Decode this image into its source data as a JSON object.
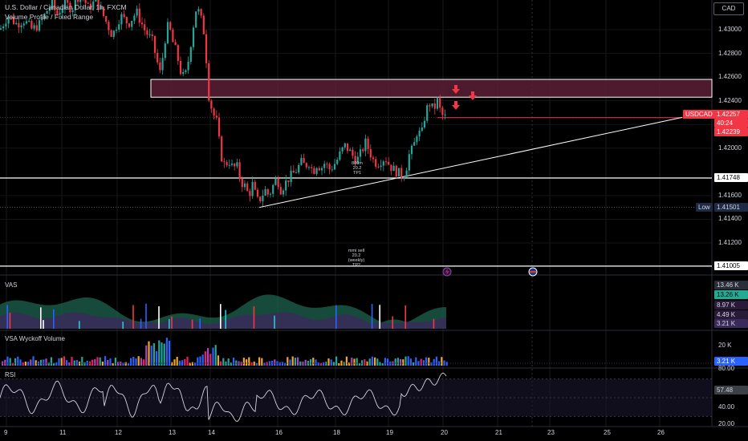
{
  "header": {
    "title": "U.S. Dollar / Canadian Dollar, 1h, FXCM",
    "indicator": "Volume Profile / Fixed Range",
    "currency_button": "CAD"
  },
  "price_axis": {
    "ticks": [
      "1.43000",
      "1.42800",
      "1.42600",
      "1.42400",
      "1.42200",
      "1.42000",
      "1.41600",
      "1.41400",
      "1.41200"
    ],
    "last_symbol": "USDCAD",
    "last_price": "1.42257",
    "countdown": "40:24",
    "bid_price": "1.42239",
    "level_1": "1.41748",
    "low_label": "Low",
    "low_price": "1.41501",
    "level_2": "1.41005"
  },
  "annotations": {
    "tp1_text": [
      "800m",
      "20.2",
      "TP1"
    ],
    "tp2_text": [
      "mmi sell",
      "20.2",
      "(weekly)",
      "TP2"
    ]
  },
  "panes": {
    "vas": {
      "label": "VAS",
      "values": [
        "13.46 K",
        "13.26 K",
        "8.97 K",
        "4.49 K",
        "3.21 K"
      ]
    },
    "vsa": {
      "label": "VSA Wyckoff Volume",
      "values": [
        "20 K",
        "3.21 K"
      ]
    },
    "rsi": {
      "label": "RSI",
      "values": [
        "80.00",
        "57.48",
        "40.00",
        "20.00"
      ]
    }
  },
  "time_axis": [
    "9",
    "11",
    "12",
    "13",
    "14",
    "16",
    "18",
    "19",
    "20",
    "21",
    "23",
    "25",
    "26"
  ],
  "colors": {
    "up": "#26a69a",
    "down": "#f23645",
    "zone_fill": "#5c1f35",
    "accent_teal": "#22ab94",
    "low_tag": "#1e2a44",
    "rsi_value_bg": "#3c3f46"
  },
  "chart_data": {
    "type": "candlestick",
    "symbol": "USDCAD",
    "timeframe": "1h",
    "ylim": [
      1.4095,
      1.4325
    ],
    "x_ticks": [
      "9",
      "11",
      "12",
      "13",
      "14",
      "16",
      "18",
      "19",
      "20",
      "21",
      "23",
      "25",
      "26"
    ],
    "close_path": [
      [
        0,
        1.43
      ],
      [
        10,
        1.4312
      ],
      [
        20,
        1.4305
      ],
      [
        30,
        1.4308
      ],
      [
        40,
        1.43
      ],
      [
        50,
        1.4305
      ],
      [
        60,
        1.4318
      ],
      [
        66,
        1.4322
      ],
      [
        70,
        1.4312
      ],
      [
        80,
        1.4322
      ],
      [
        90,
        1.4318
      ],
      [
        100,
        1.4332
      ],
      [
        110,
        1.4318
      ],
      [
        120,
        1.4325
      ],
      [
        130,
        1.431
      ],
      [
        140,
        1.4295
      ],
      [
        150,
        1.4312
      ],
      [
        160,
        1.4305
      ],
      [
        170,
        1.4315
      ],
      [
        180,
        1.43
      ],
      [
        190,
        1.429
      ],
      [
        195,
        1.4275
      ],
      [
        200,
        1.4262
      ],
      [
        205,
        1.429
      ],
      [
        210,
        1.4305
      ],
      [
        215,
        1.429
      ],
      [
        220,
        1.428
      ],
      [
        225,
        1.4265
      ],
      [
        230,
        1.4258
      ],
      [
        235,
        1.4275
      ],
      [
        240,
        1.43
      ],
      [
        245,
        1.432
      ],
      [
        250,
        1.431
      ],
      [
        255,
        1.4295
      ],
      [
        260,
        1.4245
      ],
      [
        265,
        1.423
      ],
      [
        270,
        1.4222
      ],
      [
        275,
        1.4195
      ],
      [
        280,
        1.4185
      ],
      [
        285,
        1.419
      ],
      [
        290,
        1.4183
      ],
      [
        295,
        1.4185
      ],
      [
        300,
        1.4172
      ],
      [
        305,
        1.4168
      ],
      [
        310,
        1.416
      ],
      [
        315,
        1.417
      ],
      [
        320,
        1.4155
      ],
      [
        325,
        1.4158
      ],
      [
        330,
        1.4165
      ],
      [
        335,
        1.416
      ],
      [
        340,
        1.4168
      ],
      [
        345,
        1.4175
      ],
      [
        350,
        1.4165
      ],
      [
        355,
        1.417
      ],
      [
        360,
        1.4175
      ],
      [
        365,
        1.4178
      ],
      [
        370,
        1.4182
      ],
      [
        375,
        1.4188
      ],
      [
        380,
        1.4185
      ],
      [
        385,
        1.4188
      ],
      [
        390,
        1.418
      ],
      [
        395,
        1.4187
      ],
      [
        400,
        1.4183
      ],
      [
        405,
        1.4188
      ],
      [
        410,
        1.4182
      ],
      [
        415,
        1.4185
      ],
      [
        420,
        1.419
      ],
      [
        425,
        1.4197
      ],
      [
        430,
        1.4202
      ],
      [
        435,
        1.4198
      ],
      [
        440,
        1.4193
      ],
      [
        445,
        1.419
      ],
      [
        450,
        1.4196
      ],
      [
        455,
        1.4205
      ],
      [
        460,
        1.4198
      ],
      [
        465,
        1.419
      ],
      [
        470,
        1.4187
      ],
      [
        475,
        1.419
      ],
      [
        480,
        1.4192
      ],
      [
        485,
        1.4186
      ],
      [
        490,
        1.4182
      ],
      [
        495,
        1.418
      ],
      [
        500,
        1.4177
      ],
      [
        505,
        1.418
      ],
      [
        510,
        1.4195
      ],
      [
        515,
        1.42
      ],
      [
        520,
        1.4215
      ],
      [
        525,
        1.421
      ],
      [
        530,
        1.423
      ],
      [
        535,
        1.4238
      ],
      [
        540,
        1.4232
      ],
      [
        545,
        1.424
      ],
      [
        550,
        1.4228
      ],
      [
        555,
        1.4226
      ]
    ],
    "horizontal_levels": [
      1.42257,
      1.41748,
      1.41005
    ],
    "zone": {
      "from": 1.4243,
      "to": 1.4258
    },
    "trendline": {
      "from": [
        323,
        1.415
      ],
      "to": [
        850,
        1.4226
      ]
    },
    "rsi_range": [
      20,
      80
    ]
  }
}
